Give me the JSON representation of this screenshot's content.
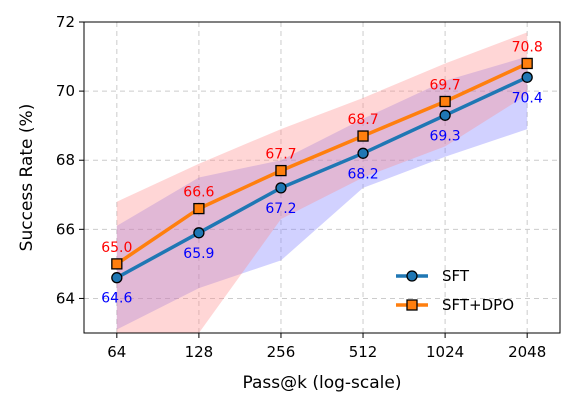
{
  "chart_data": {
    "type": "line",
    "xlabel": "Pass@k (log-scale)",
    "ylabel": "Success Rate (%)",
    "x": [
      64,
      128,
      256,
      512,
      1024,
      2048
    ],
    "x_tick_labels": [
      "64",
      "128",
      "256",
      "512",
      "1024",
      "2048"
    ],
    "x_scale": "log2",
    "ylim": [
      63,
      72
    ],
    "y_ticks": [
      64,
      66,
      68,
      70,
      72
    ],
    "grid": true,
    "legend_position": "lower-right",
    "series": [
      {
        "name": "SFT",
        "color": "#1f77b4",
        "marker": "circle",
        "values": [
          64.6,
          65.9,
          67.2,
          68.2,
          69.3,
          70.4
        ],
        "labels": [
          "64.6",
          "65.9",
          "67.2",
          "68.2",
          "69.3",
          "70.4"
        ],
        "label_color": "#0000ff",
        "band_color": "#7b7bff",
        "band_lower": [
          63.1,
          64.3,
          65.1,
          67.2,
          68.1,
          68.9
        ],
        "band_upper": [
          66.1,
          67.5,
          68.0,
          69.2,
          70.3,
          71.0
        ]
      },
      {
        "name": "SFT+DPO",
        "color": "#ff7f0e",
        "marker": "square",
        "values": [
          65.0,
          66.6,
          67.7,
          68.7,
          69.7,
          70.8
        ],
        "labels": [
          "65.0",
          "66.6",
          "67.7",
          "68.7",
          "69.7",
          "70.8"
        ],
        "label_color": "#ff0000",
        "band_color": "#ff8a8a",
        "band_lower": [
          62.6,
          63.0,
          66.3,
          67.5,
          68.4,
          69.9
        ],
        "band_upper": [
          66.8,
          67.9,
          68.9,
          69.8,
          70.8,
          71.7
        ]
      }
    ]
  }
}
